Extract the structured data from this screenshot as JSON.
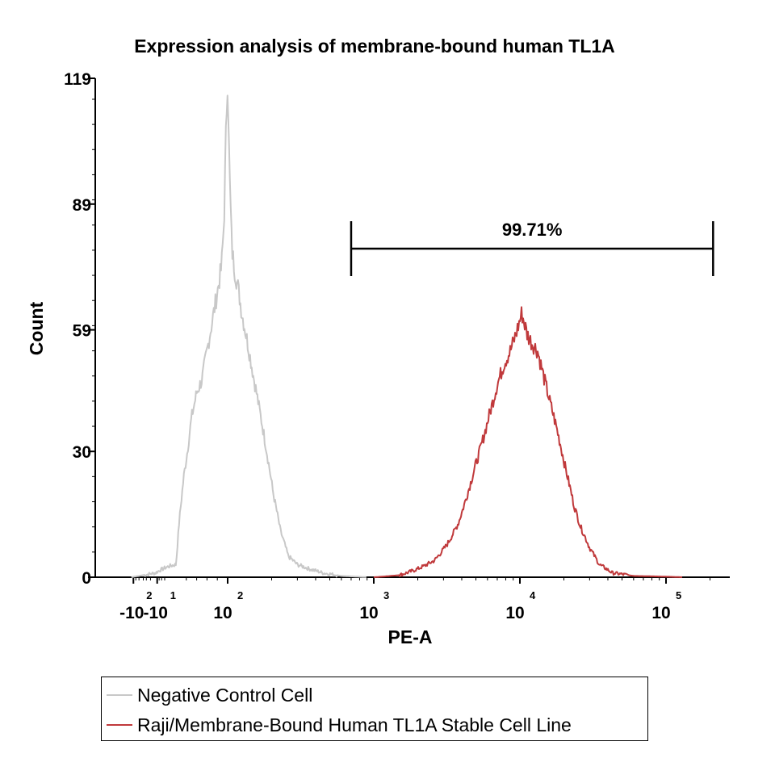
{
  "chart_data": {
    "type": "histogram",
    "title": "Expression analysis of membrane-bound human TL1A",
    "xlabel": "PE-A",
    "ylabel": "Count",
    "ylim": [
      0,
      119
    ],
    "y_ticks": [
      {
        "value": 0,
        "label": "0"
      },
      {
        "value": 30,
        "label": "30"
      },
      {
        "value": 59,
        "label": "59"
      },
      {
        "value": 89,
        "label": "89"
      },
      {
        "value": 119,
        "label": "119"
      }
    ],
    "x_scale": "biexponential",
    "x_ticks": [
      {
        "value": -100,
        "base": "-10",
        "exp": "2"
      },
      {
        "value": -10,
        "base": "-10",
        "exp": "1"
      },
      {
        "value": 100,
        "base": "10",
        "exp": "2"
      },
      {
        "value": 1000,
        "base": "10",
        "exp": "3"
      },
      {
        "value": 10000,
        "base": "10",
        "exp": "4"
      },
      {
        "value": 100000,
        "base": "10",
        "exp": "5"
      }
    ],
    "gate": {
      "label": "99.71%",
      "from": 700,
      "to": 210000
    },
    "series": [
      {
        "name": "Negative Control Cell",
        "color": "#c8c8c8",
        "points": [
          [
            -120,
            0
          ],
          [
            -60,
            0.3
          ],
          [
            -30,
            0.6
          ],
          [
            -12,
            1
          ],
          [
            -5,
            2
          ],
          [
            0,
            3
          ],
          [
            3,
            8
          ],
          [
            6,
            13
          ],
          [
            10,
            18
          ],
          [
            15,
            24
          ],
          [
            22,
            30
          ],
          [
            30,
            38
          ],
          [
            40,
            44
          ],
          [
            50,
            47
          ],
          [
            60,
            54
          ],
          [
            70,
            61
          ],
          [
            80,
            68
          ],
          [
            88,
            74
          ],
          [
            93,
            85
          ],
          [
            97,
            108
          ],
          [
            100,
            119
          ],
          [
            103,
            96
          ],
          [
            107,
            78
          ],
          [
            112,
            73
          ],
          [
            118,
            69
          ],
          [
            125,
            63
          ],
          [
            135,
            57
          ],
          [
            150,
            48
          ],
          [
            165,
            40
          ],
          [
            185,
            30
          ],
          [
            205,
            20
          ],
          [
            230,
            11
          ],
          [
            260,
            5
          ],
          [
            300,
            3
          ],
          [
            360,
            2
          ],
          [
            450,
            1
          ],
          [
            600,
            0.3
          ],
          [
            900,
            0
          ]
        ]
      },
      {
        "name": "Raji/Membrane-Bound Human TL1A Stable Cell Line",
        "color": "#c0393b",
        "points": [
          [
            1000,
            0
          ],
          [
            1500,
            0.5
          ],
          [
            2000,
            2
          ],
          [
            2600,
            4
          ],
          [
            3200,
            8
          ],
          [
            3800,
            13
          ],
          [
            4300,
            19
          ],
          [
            4900,
            26
          ],
          [
            5500,
            32
          ],
          [
            6200,
            39
          ],
          [
            7000,
            46
          ],
          [
            7800,
            51
          ],
          [
            8600,
            54
          ],
          [
            9400,
            58
          ],
          [
            10300,
            63
          ],
          [
            11200,
            58
          ],
          [
            12000,
            56
          ],
          [
            13200,
            54
          ],
          [
            14500,
            48
          ],
          [
            16000,
            42
          ],
          [
            18000,
            35
          ],
          [
            20500,
            26
          ],
          [
            23500,
            17
          ],
          [
            26000,
            12
          ],
          [
            30000,
            7
          ],
          [
            35000,
            3
          ],
          [
            43000,
            1
          ],
          [
            60000,
            0.3
          ],
          [
            130000,
            0
          ]
        ]
      }
    ]
  }
}
